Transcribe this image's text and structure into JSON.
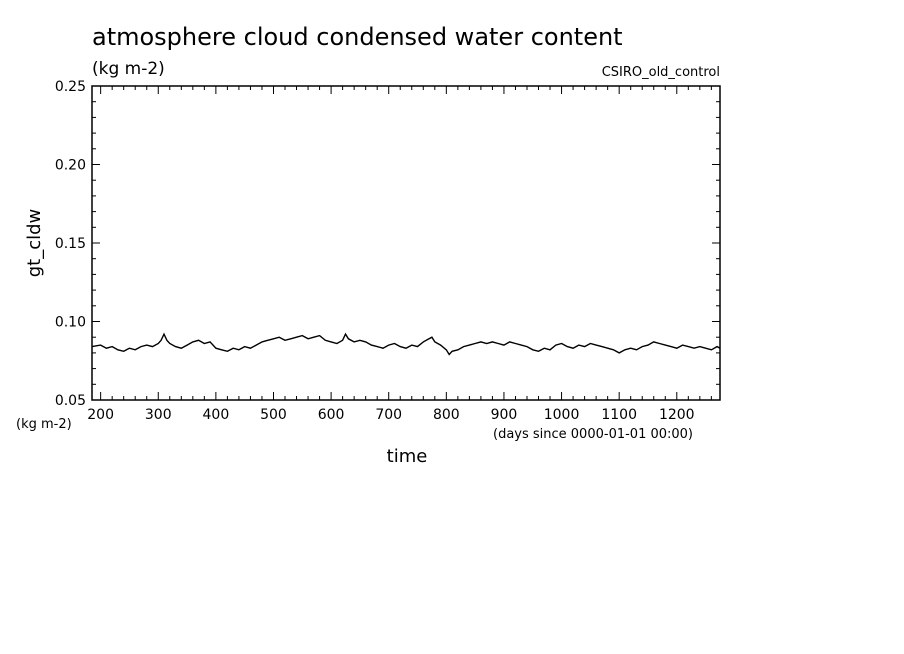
{
  "chart_data": {
    "type": "line",
    "title": "atmosphere cloud condensed water content",
    "subtitle": "(kg m-2)",
    "dataset_label": "CSIRO_old_control",
    "xlabel": "time",
    "x_units": "(days since 0000-01-01 00:00)",
    "ylabel": "gt_cldw",
    "y_units": "(kg m-2)",
    "xlim": [
      185,
      1275
    ],
    "ylim": [
      0.05,
      0.25
    ],
    "x_ticks": [
      200,
      300,
      400,
      500,
      600,
      700,
      800,
      900,
      1000,
      1100,
      1200
    ],
    "y_ticks": [
      "0.05",
      "0.10",
      "0.15",
      "0.20",
      "0.25"
    ],
    "grid": false,
    "series": [
      {
        "x": [
          185,
          200,
          210,
          220,
          230,
          240,
          250,
          260,
          270,
          280,
          290,
          300,
          305,
          310,
          315,
          320,
          330,
          340,
          350,
          360,
          370,
          380,
          390,
          400,
          410,
          420,
          430,
          440,
          450,
          460,
          470,
          480,
          490,
          500,
          510,
          520,
          530,
          540,
          550,
          560,
          570,
          580,
          590,
          600,
          610,
          620,
          625,
          630,
          640,
          650,
          660,
          670,
          680,
          690,
          700,
          710,
          720,
          730,
          740,
          750,
          760,
          770,
          775,
          780,
          790,
          800,
          805,
          810,
          820,
          830,
          840,
          850,
          860,
          870,
          880,
          890,
          900,
          910,
          920,
          930,
          940,
          950,
          960,
          970,
          980,
          990,
          1000,
          1010,
          1020,
          1030,
          1040,
          1050,
          1060,
          1070,
          1080,
          1090,
          1100,
          1110,
          1120,
          1130,
          1140,
          1150,
          1160,
          1170,
          1180,
          1190,
          1200,
          1210,
          1220,
          1230,
          1240,
          1250,
          1260,
          1270,
          1275
        ],
        "y": [
          0.084,
          0.085,
          0.083,
          0.084,
          0.082,
          0.081,
          0.083,
          0.082,
          0.084,
          0.085,
          0.084,
          0.086,
          0.088,
          0.092,
          0.088,
          0.086,
          0.084,
          0.083,
          0.085,
          0.087,
          0.088,
          0.086,
          0.087,
          0.083,
          0.082,
          0.081,
          0.083,
          0.082,
          0.084,
          0.083,
          0.085,
          0.087,
          0.088,
          0.089,
          0.09,
          0.088,
          0.089,
          0.09,
          0.091,
          0.089,
          0.09,
          0.091,
          0.088,
          0.087,
          0.086,
          0.088,
          0.092,
          0.089,
          0.087,
          0.088,
          0.087,
          0.085,
          0.084,
          0.083,
          0.085,
          0.086,
          0.084,
          0.083,
          0.085,
          0.084,
          0.087,
          0.089,
          0.09,
          0.087,
          0.085,
          0.082,
          0.079,
          0.081,
          0.082,
          0.084,
          0.085,
          0.086,
          0.087,
          0.086,
          0.087,
          0.086,
          0.085,
          0.087,
          0.086,
          0.085,
          0.084,
          0.082,
          0.081,
          0.083,
          0.082,
          0.085,
          0.086,
          0.084,
          0.083,
          0.085,
          0.084,
          0.086,
          0.085,
          0.084,
          0.083,
          0.082,
          0.08,
          0.082,
          0.083,
          0.082,
          0.084,
          0.085,
          0.087,
          0.086,
          0.085,
          0.084,
          0.083,
          0.085,
          0.084,
          0.083,
          0.084,
          0.083,
          0.082,
          0.084,
          0.083
        ]
      }
    ]
  }
}
